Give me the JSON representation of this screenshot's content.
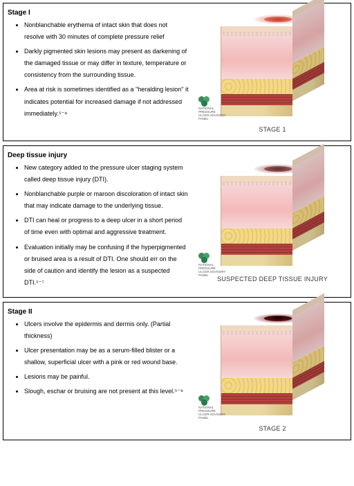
{
  "logo_text": "NATIONAL PRESSURE ULCER ADVISORY PANEL",
  "colors": {
    "epidermis": "#f0d8c2",
    "dermis_light": "#f7d7d7",
    "dermis_dark": "#f3b9b9",
    "fat": "#f3d88a",
    "muscle": "#b5433f",
    "muscle_dark": "#8a2f2a",
    "bone": "#e8d7a0",
    "bone_dark": "#d4bc7a",
    "top_skin": "#f3dec9"
  },
  "stages": [
    {
      "title": "Stage I",
      "caption": "STAGE 1",
      "wound": {
        "outer": "#e07a6a",
        "inner": "#c83a2a",
        "depth": "surface"
      },
      "bullets": [
        "Nonblanchable erythema of intact skin that does not resolve with 30 minutes of complete pressure relief",
        "Darkly pigmented skin lesions may present as darkening of the damaged tissue or may differ in texture, temperature or consistency from the surrounding tissue.",
        "Area at risk is sometimes identified as a \"heralding lesion\" it indicates potential for increased damage if not addressed immediately.⁵⁻⁸"
      ]
    },
    {
      "title": "Deep tissue injury",
      "caption": "SUSPECTED DEEP TISSUE INJURY",
      "wound": {
        "outer": "#a05a5a",
        "inner": "#5a2a2a",
        "depth": "surface"
      },
      "bullets": [
        "New category added to the pressure ulcer staging system called deep tissue injury (DTI).",
        "Nonblanchable purple or maroon discoloration of intact skin that may indicate damage to the underlying tissue.",
        "DTI can heal or progress to a deep ulcer in a short period of time even with optimal and aggressive treatment.",
        "Evaluation initially may be confusing if the hyperpigmented or bruised area is a result of DTI. One should err on the side of caution and identify the lesion as a suspected DTI.⁵⁻⁷"
      ]
    },
    {
      "title": "Stage II",
      "caption": "STAGE 2",
      "wound": {
        "outer": "#7a1c1c",
        "inner": "#4a0e0e",
        "depth": "crater"
      },
      "bullets": [
        "Ulcers involve the epidermis and dermis only. (Partial thickness)",
        "Ulcer presentation may be as a serum-filled blister or a shallow, superficial ulcer with a pink or red wound base.",
        "Lesions may be painful.",
        "Slough, eschar or bruising are not present at this level.⁵⁻⁸"
      ]
    }
  ]
}
